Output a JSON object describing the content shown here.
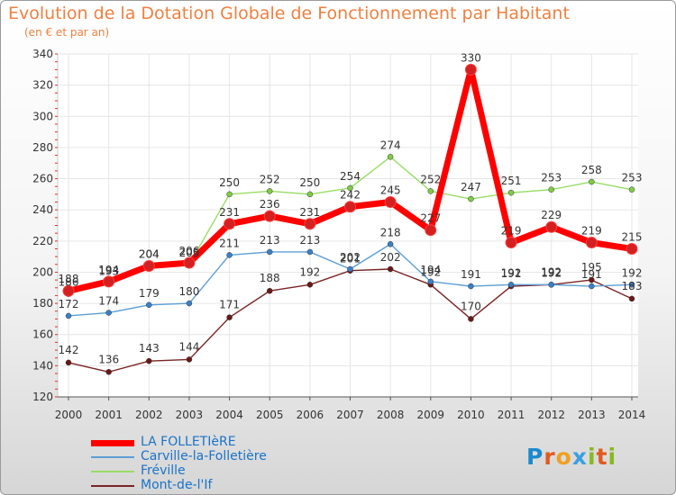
{
  "title": "Evolution de la Dotation Globale de Fonctionnement par Habitant",
  "subtitle": "(en € et par an)",
  "logo_text": "Proxiti",
  "colors": {
    "title": "#f08040",
    "axis_text": "#333333",
    "legend_text": "#1a73c9",
    "grid": "#e6e6e6"
  },
  "chart_data": {
    "type": "line",
    "title": "Evolution de la Dotation Globale de Fonctionnement par Habitant",
    "subtitle": "(en € et par an)",
    "xlabel": "",
    "ylabel": "",
    "ylim": [
      120,
      340
    ],
    "yticks": [
      120,
      140,
      160,
      180,
      200,
      220,
      240,
      260,
      280,
      300,
      320,
      340
    ],
    "grid": true,
    "legend_position": "bottom-left",
    "categories": [
      "2000",
      "2001",
      "2002",
      "2003",
      "2004",
      "2005",
      "2006",
      "2007",
      "2008",
      "2009",
      "2010",
      "2011",
      "2012",
      "2013",
      "2014"
    ],
    "series": [
      {
        "name": "LA FOLLETIèRE",
        "color": "#ff0000",
        "marker": "#d42020",
        "values": [
          188,
          194,
          204,
          206,
          231,
          236,
          231,
          242,
          245,
          227,
          330,
          219,
          229,
          219,
          215
        ]
      },
      {
        "name": "Carville-la-Folletière",
        "color": "#5d9ed6",
        "marker": "#3a80c8",
        "values": [
          172,
          174,
          179,
          180,
          211,
          213,
          213,
          202,
          218,
          194,
          191,
          192,
          192,
          191,
          192
        ]
      },
      {
        "name": "Fréville",
        "color": "#99dd66",
        "marker": "#80cc44",
        "values": [
          186,
          193,
          204,
          205,
          250,
          252,
          250,
          254,
          274,
          252,
          247,
          251,
          253,
          258,
          253
        ]
      },
      {
        "name": "Mont-de-l'If",
        "color": "#7a2424",
        "marker": "#6a1818",
        "values": [
          142,
          136,
          143,
          144,
          171,
          188,
          192,
          201,
          202,
          192,
          170,
          191,
          192,
          195,
          183
        ]
      }
    ]
  }
}
